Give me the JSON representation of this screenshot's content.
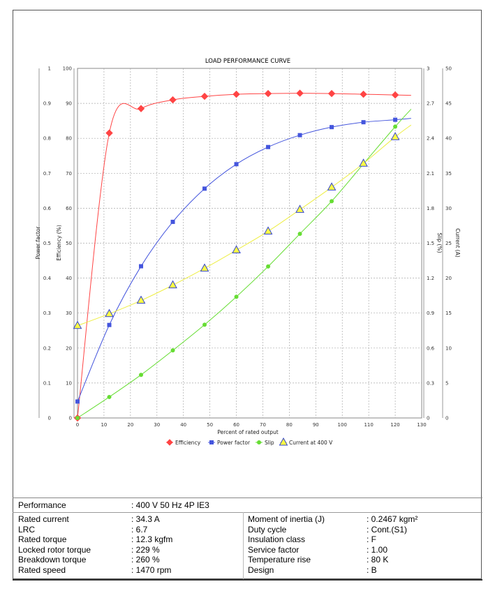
{
  "chart_data": {
    "type": "line",
    "title": "LOAD PERFORMANCE CURVE",
    "xlabel": "Percent of rated output",
    "xlim": [
      0,
      130
    ],
    "xticks": [
      0,
      10,
      20,
      30,
      40,
      50,
      60,
      70,
      80,
      90,
      100,
      110,
      120,
      130
    ],
    "grid": true,
    "axes": {
      "power_factor": {
        "label": "Power factor",
        "lim": [
          0,
          1
        ],
        "ticks": [
          "0",
          "0.1",
          "0.2",
          "0.3",
          "0.4",
          "0.5",
          "0.6",
          "0.7",
          "0.8",
          "0.9",
          "1"
        ]
      },
      "efficiency": {
        "label": "Efficiency (%)",
        "lim": [
          0,
          100
        ],
        "ticks": [
          "0",
          "10",
          "20",
          "30",
          "40",
          "50",
          "60",
          "70",
          "80",
          "90",
          "100"
        ]
      },
      "slip": {
        "label": "Slip (%)",
        "lim": [
          0,
          3
        ],
        "ticks": [
          "0",
          "0.3",
          "0.6",
          "0.9",
          "1.2",
          "1.5",
          "1.8",
          "2.1",
          "2.4",
          "2.7",
          "3"
        ]
      },
      "current": {
        "label": "Current (A)",
        "lim": [
          0,
          50
        ],
        "ticks": [
          "0",
          "5",
          "10",
          "15",
          "20",
          "25",
          "30",
          "35",
          "40",
          "45",
          "50"
        ]
      }
    },
    "x": [
      0,
      12,
      24,
      36,
      48,
      60,
      72,
      84,
      96,
      108,
      120
    ],
    "series": [
      {
        "name": "Efficiency",
        "axis": "efficiency",
        "color": "#ff4444",
        "marker": "diamond",
        "values": [
          0,
          81.5,
          88.5,
          91.0,
          92.0,
          92.6,
          92.8,
          92.9,
          92.8,
          92.6,
          92.4
        ],
        "fit_end": [
          126,
          92.3
        ]
      },
      {
        "name": "Power factor",
        "axis": "power_factor",
        "color": "#4455dd",
        "marker": "square",
        "values": [
          0.047,
          0.266,
          0.434,
          0.561,
          0.656,
          0.726,
          0.775,
          0.809,
          0.832,
          0.846,
          0.853
        ],
        "fit_end": [
          126,
          0.857
        ]
      },
      {
        "name": "Slip",
        "axis": "slip",
        "color": "#66dd33",
        "marker": "circle",
        "values": [
          0,
          0.18,
          0.37,
          0.58,
          0.8,
          1.04,
          1.3,
          1.58,
          1.86,
          2.18,
          2.5
        ],
        "fit_end": [
          126,
          2.65
        ]
      },
      {
        "name": "Current at 400 V",
        "axis": "current",
        "color": "#ffff44",
        "marker": "triangle",
        "values": [
          13.2,
          14.9,
          16.8,
          19.0,
          21.4,
          24.0,
          26.7,
          29.8,
          33.0,
          36.4,
          40.2
        ],
        "fit_end": [
          126,
          41.9
        ]
      }
    ],
    "legend_position": "bottom-center"
  },
  "table": {
    "performance_label": "Performance",
    "performance_value": ": 400 V 50 Hz 4P IE3",
    "left": [
      {
        "label": "Rated current",
        "value": ": 34.3 A"
      },
      {
        "label": "LRC",
        "value": ": 6.7"
      },
      {
        "label": "Rated torque",
        "value": ": 12.3 kgfm"
      },
      {
        "label": "Locked rotor torque",
        "value": ": 229 %"
      },
      {
        "label": "Breakdown torque",
        "value": ": 260 %"
      },
      {
        "label": "Rated speed",
        "value": ": 1470 rpm"
      }
    ],
    "right": [
      {
        "label": "Moment of inertia (J)",
        "value": ": 0.2467 kgm²"
      },
      {
        "label": "Duty cycle",
        "value": ": Cont.(S1)"
      },
      {
        "label": "Insulation class",
        "value": ": F"
      },
      {
        "label": "Service factor",
        "value": ": 1.00"
      },
      {
        "label": "Temperature rise",
        "value": ": 80 K"
      },
      {
        "label": "Design",
        "value": ": B"
      }
    ]
  }
}
